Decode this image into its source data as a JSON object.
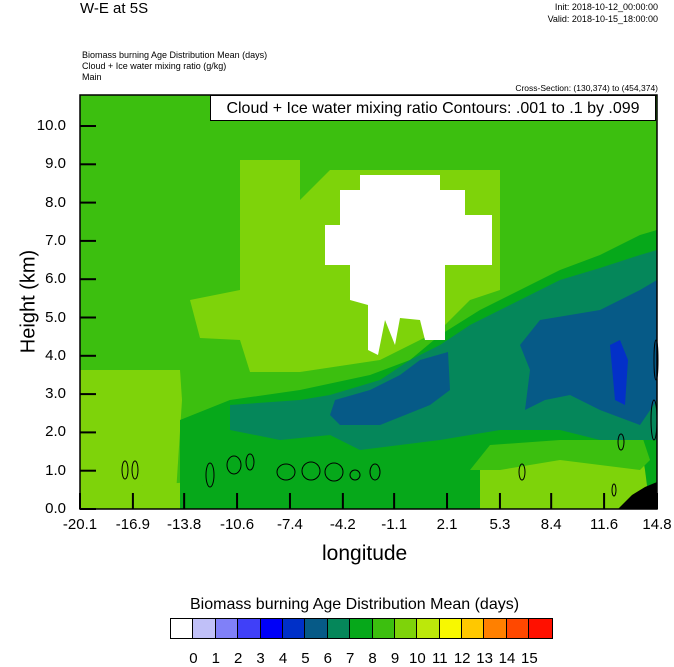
{
  "header": {
    "title": "W-E at 5S",
    "init": "Init: 2018-10-12_00:00:00",
    "valid": "Valid: 2018-10-15_18:00:00",
    "subtitles": [
      "Biomass burning Age Distribution Mean   (days)",
      "Cloud + Ice water mixing ratio   (g/kg)",
      "Main"
    ],
    "cross_section": "Cross-Section: (130,374) to (454,374)"
  },
  "chart_data": {
    "type": "heatmap",
    "title": "W-E at 5S",
    "contour_legend": "Cloud + Ice water mixing ratio Contours: .001 to .1 by .099",
    "xlabel": "longitude",
    "ylabel": "Height (km)",
    "xlim": [
      -20.1,
      14.8
    ],
    "ylim": [
      0,
      10.8
    ],
    "x_ticks": [
      "-20.1",
      "-16.9",
      "-13.8",
      "-10.6",
      "-7.4",
      "-4.2",
      "-1.1",
      "2.1",
      "5.3",
      "8.4",
      "11.6",
      "14.8"
    ],
    "y_ticks": [
      "0.0",
      "1.0",
      "2.0",
      "3.0",
      "4.0",
      "5.0",
      "6.0",
      "7.0",
      "8.0",
      "9.0",
      "10.0"
    ],
    "colorbar": {
      "title": "Biomass burning Age Distribution Mean  (days)",
      "labels": [
        "0",
        "1",
        "2",
        "3",
        "4",
        "5",
        "6",
        "7",
        "8",
        "9",
        "10",
        "11",
        "12",
        "13",
        "14",
        "15"
      ],
      "colors": [
        "#ffffff",
        "#c0c0f8",
        "#8080f8",
        "#4040f8",
        "#0000f8",
        "#0030c8",
        "#065a87",
        "#05875a",
        "#06a81a",
        "#3cbf0f",
        "#7ed30a",
        "#bce80a",
        "#f8f800",
        "#ffc800",
        "#ff8000",
        "#ff4800",
        "#ff1000"
      ]
    },
    "field_summary": {
      "background_days": "8-9",
      "cloud_region_days": "0-1",
      "max_band_days": "4-5"
    }
  }
}
